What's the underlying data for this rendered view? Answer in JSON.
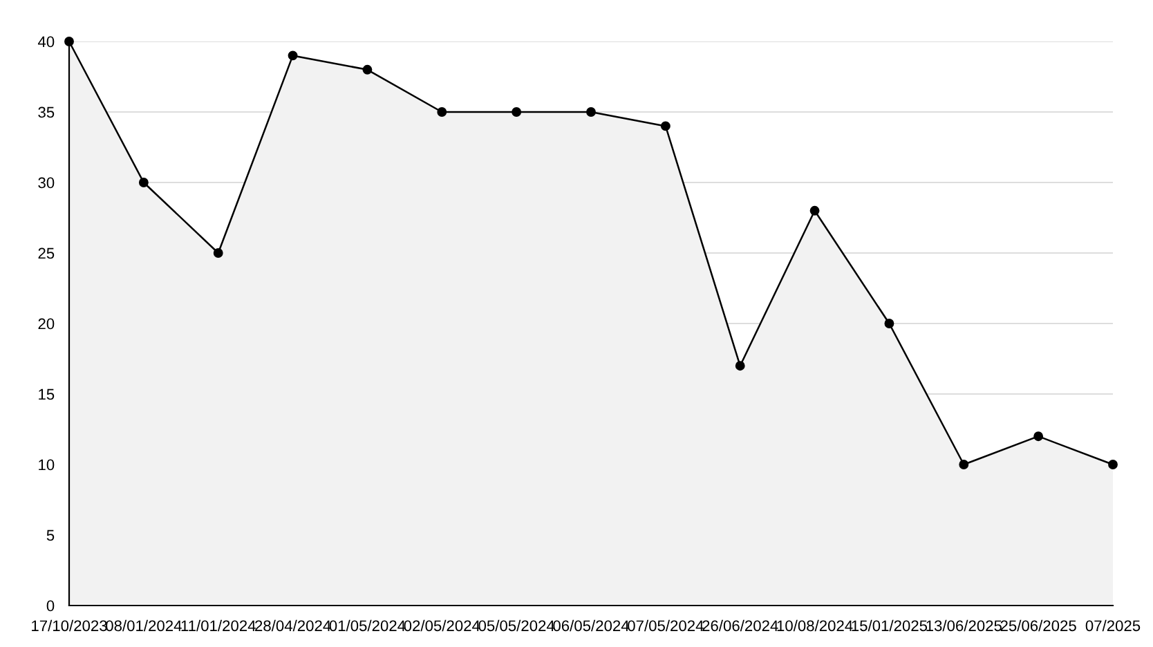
{
  "chart_data": {
    "type": "area",
    "categories": [
      "17/10/2023",
      "08/01/2024",
      "11/01/2024",
      "28/04/2024",
      "01/05/2024",
      "02/05/2024",
      "05/05/2024",
      "06/05/2024",
      "07/05/2024",
      "26/06/2024",
      "10/08/2024",
      "15/01/2025",
      "13/06/2025",
      "25/06/2025",
      "07/2025"
    ],
    "series": [
      {
        "color": "#000000",
        "values": [
          40,
          30,
          25,
          39,
          38,
          35,
          35,
          35,
          34,
          17,
          28,
          20,
          10,
          12,
          10
        ]
      }
    ],
    "ylim": [
      0,
      40
    ],
    "yticks": [
      0,
      5,
      10,
      15,
      20,
      25,
      30,
      35,
      40
    ],
    "grid": "y",
    "marker": "circle",
    "line_style": "solid",
    "legend": false
  }
}
